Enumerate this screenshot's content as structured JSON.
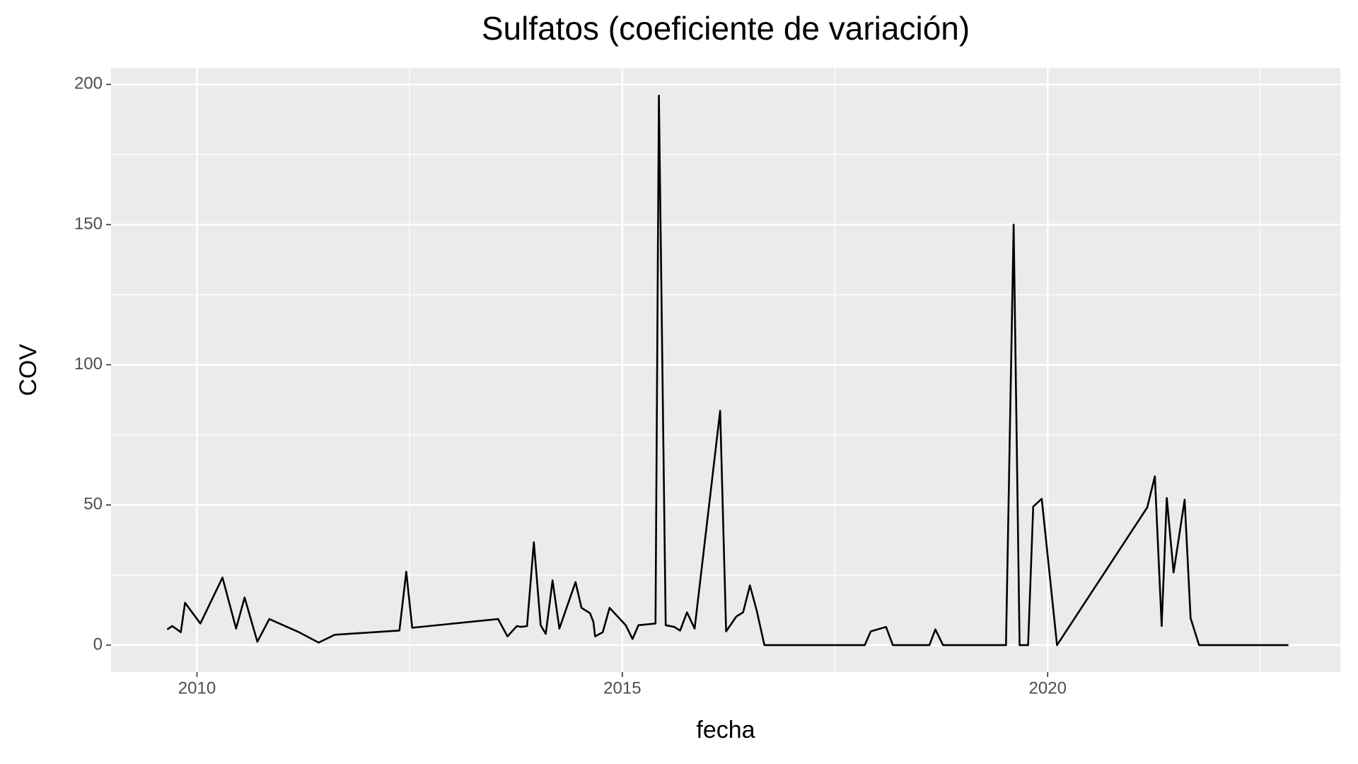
{
  "chart_data": {
    "type": "line",
    "title": "Sulfatos (coeficiente de variación)",
    "x_label": "fecha",
    "y_label": "COV",
    "xlim": [
      2008.99,
      2023.44
    ],
    "xticks": [
      2010,
      2015,
      2020
    ],
    "ylim": [
      -9.6,
      205.9
    ],
    "yticks": [
      0,
      50,
      100,
      150,
      200
    ],
    "grid": true,
    "x": [
      2009.65,
      2009.71,
      2009.81,
      2009.86,
      2010.04,
      2010.3,
      2010.46,
      2010.56,
      2010.71,
      2010.85,
      2011.2,
      2011.43,
      2011.62,
      2012.38,
      2012.46,
      2012.53,
      2013.54,
      2013.65,
      2013.76,
      2013.81,
      2013.88,
      2013.96,
      2014.04,
      2014.1,
      2014.18,
      2014.26,
      2014.45,
      2014.52,
      2014.62,
      2014.66,
      2014.68,
      2014.77,
      2014.85,
      2015.04,
      2015.12,
      2015.19,
      2015.39,
      2015.43,
      2015.51,
      2015.61,
      2015.68,
      2015.76,
      2015.85,
      2016.15,
      2016.22,
      2016.34,
      2016.42,
      2016.5,
      2016.58,
      2016.67,
      2017.85,
      2017.92,
      2018.1,
      2018.18,
      2018.61,
      2018.68,
      2018.77,
      2019.51,
      2019.6,
      2019.67,
      2019.77,
      2019.83,
      2019.93,
      2020.11,
      2021.17,
      2021.26,
      2021.34,
      2021.4,
      2021.48,
      2021.61,
      2021.68,
      2021.78,
      2022.83
    ],
    "series": [
      {
        "name": "COV",
        "color": "#000000",
        "values": [
          5.6,
          6.8,
          4.6,
          15.1,
          7.7,
          24.1,
          5.9,
          17.0,
          1.2,
          9.3,
          4.6,
          0.9,
          3.7,
          5.2,
          26.2,
          6.2,
          9.3,
          3.1,
          6.8,
          6.5,
          6.8,
          36.7,
          7.1,
          4.0,
          23.1,
          5.9,
          22.5,
          13.3,
          11.4,
          8.3,
          3.1,
          4.6,
          13.3,
          7.1,
          2.2,
          7.1,
          7.7,
          196.0,
          7.1,
          6.5,
          5.2,
          11.7,
          5.9,
          83.6,
          4.9,
          10.2,
          11.7,
          21.3,
          12.3,
          0,
          0,
          4.9,
          6.5,
          0,
          0,
          5.6,
          0,
          0,
          150,
          0,
          0,
          49.4,
          52.2,
          0,
          49.1,
          60.2,
          6.8,
          52.5,
          25.9,
          51.9,
          9.6,
          0,
          0
        ]
      }
    ]
  }
}
